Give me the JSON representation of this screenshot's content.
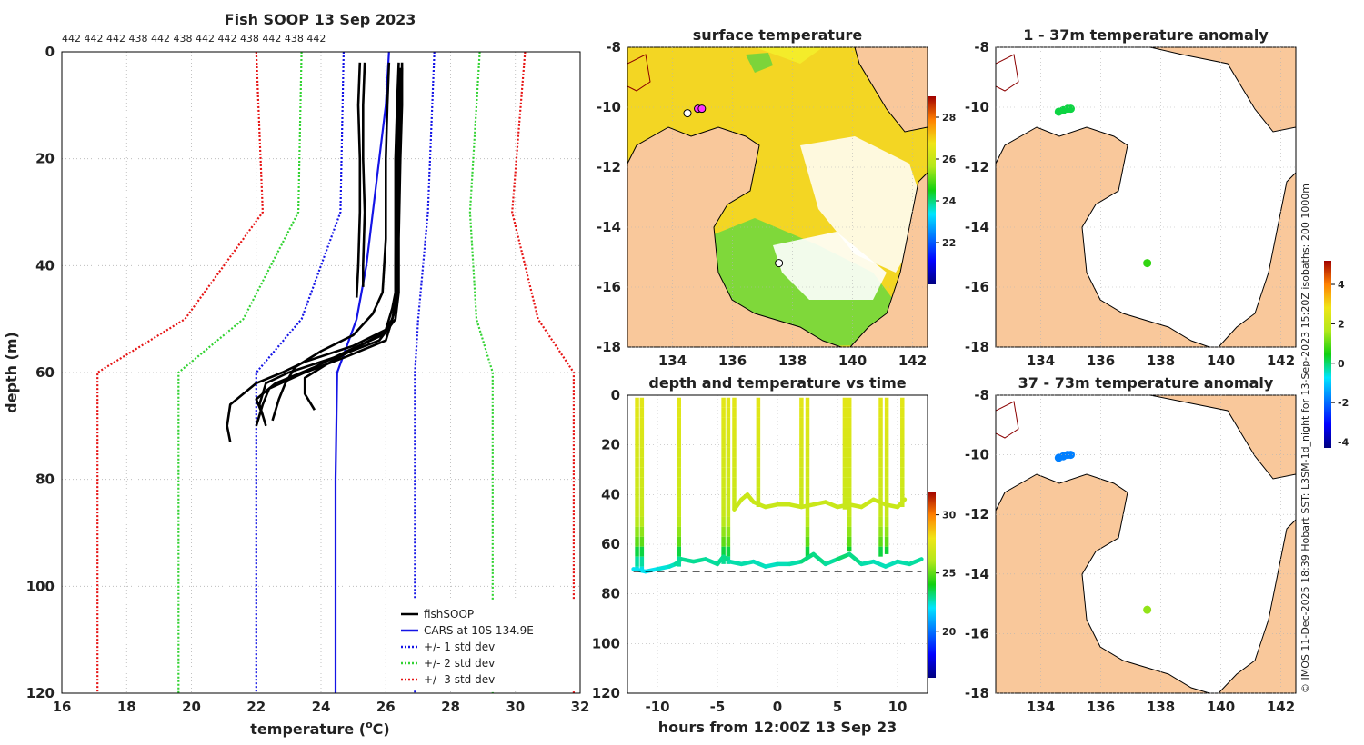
{
  "colors": {
    "land": "#f9c89b",
    "axis": "#000000",
    "grid": "#b4b4b4",
    "profile": "#000000",
    "cars": "#1414e6",
    "std1": "#1414e6",
    "std2": "#32d232",
    "std3": "#e61414"
  },
  "side_caption": "© IMOS 11-Dec-2025 18:39 Hobart SST: L3SM-1d_night for 13-Sep-2023 15:20Z isobaths: 200  1000m",
  "chart_data": [
    {
      "id": "profile",
      "type": "line",
      "title": "Fish SOOP 13 Sep 2023",
      "xlabel": "temperature (°C)",
      "xlabel_main": "temperature (",
      "xlabel_sup": "o",
      "xlabel_end": "C)",
      "ylabel": "depth (m)",
      "xlim": [
        16,
        32
      ],
      "ylim": [
        120,
        0
      ],
      "xticks": [
        "16",
        "18",
        "20",
        "22",
        "24",
        "26",
        "28",
        "30",
        "32"
      ],
      "yticks": [
        "0",
        "20",
        "40",
        "60",
        "80",
        "100",
        "120"
      ],
      "top_ids": "442 442 442 438 442 438 442 442 438 442 438 442",
      "legend": [
        "fishSOOP",
        "CARS at 10S 134.9E",
        "+/- 1 std dev",
        "+/- 2 std dev",
        "+/- 3 std dev"
      ],
      "cars_mean": {
        "depth": [
          0,
          10,
          20,
          30,
          40,
          50,
          60,
          80,
          100,
          120
        ],
        "temp": [
          26.1,
          26.0,
          25.8,
          25.6,
          25.4,
          25.1,
          24.5,
          24.45,
          24.45,
          24.45
        ]
      },
      "std_lines": [
        {
          "name": "+/- 1 std dev",
          "depth": [
            0,
            30,
            50,
            60,
            120
          ],
          "left": [
            24.7,
            24.6,
            23.4,
            22.0,
            22.0
          ],
          "right": [
            27.5,
            27.3,
            27.0,
            26.9,
            26.9
          ]
        },
        {
          "name": "+/- 2 std dev",
          "depth": [
            0,
            30,
            50,
            60,
            120
          ],
          "left": [
            23.4,
            23.3,
            21.6,
            19.6,
            19.6
          ],
          "right": [
            28.9,
            28.6,
            28.8,
            29.3,
            29.3
          ]
        },
        {
          "name": "+/- 3 std dev",
          "depth": [
            0,
            30,
            50,
            60,
            120
          ],
          "left": [
            22.0,
            22.2,
            19.8,
            17.1,
            17.1
          ],
          "right": [
            30.3,
            29.9,
            30.7,
            31.8,
            31.8
          ]
        }
      ],
      "profiles": [
        {
          "depth": [
            2,
            10,
            20,
            30,
            40,
            46
          ],
          "temp": [
            25.2,
            25.15,
            25.2,
            25.2,
            25.15,
            25.1
          ]
        },
        {
          "depth": [
            2,
            10,
            20,
            30,
            40,
            44
          ],
          "temp": [
            25.35,
            25.3,
            25.3,
            25.35,
            25.3,
            25.3
          ]
        },
        {
          "depth": [
            2,
            10,
            20,
            35,
            45,
            48,
            52,
            55,
            58,
            60,
            62,
            66,
            70,
            73
          ],
          "temp": [
            26.4,
            26.35,
            26.3,
            26.3,
            26.3,
            26.2,
            26.0,
            25.0,
            23.5,
            22.8,
            22.0,
            21.2,
            21.1,
            21.2
          ]
        },
        {
          "depth": [
            2,
            10,
            20,
            35,
            45,
            50,
            54,
            57,
            60,
            62,
            66,
            70
          ],
          "temp": [
            26.5,
            26.5,
            26.45,
            26.4,
            26.4,
            26.3,
            25.8,
            24.5,
            23.0,
            22.3,
            22.1,
            22.3
          ]
        },
        {
          "depth": [
            2,
            10,
            20,
            35,
            45,
            49,
            53,
            56,
            59,
            62,
            65,
            69
          ],
          "temp": [
            26.1,
            26.05,
            26.0,
            26.0,
            25.9,
            25.6,
            25.0,
            24.0,
            23.2,
            22.9,
            22.7,
            22.5
          ]
        },
        {
          "depth": [
            3,
            12,
            25,
            40,
            48,
            52,
            55,
            58,
            61,
            64,
            67
          ],
          "temp": [
            26.5,
            26.45,
            26.4,
            26.35,
            26.3,
            26.1,
            25.2,
            24.3,
            23.5,
            23.5,
            23.8
          ]
        },
        {
          "depth": [
            3,
            15,
            30,
            45,
            50,
            53,
            56,
            59,
            62,
            65,
            68
          ],
          "temp": [
            26.45,
            26.4,
            26.4,
            26.35,
            26.2,
            25.9,
            24.8,
            23.8,
            22.6,
            22.0,
            22.2
          ]
        },
        {
          "depth": [
            4,
            20,
            40,
            48,
            54,
            57,
            60,
            63,
            66,
            70
          ],
          "temp": [
            26.4,
            26.35,
            26.3,
            26.3,
            26.0,
            24.8,
            23.5,
            22.4,
            22.2,
            22.0
          ]
        }
      ]
    },
    {
      "id": "sst",
      "type": "heatmap",
      "title": "surface temperature",
      "xlim": [
        132.5,
        142.5
      ],
      "ylim": [
        -18,
        -8
      ],
      "xticks": [
        "134",
        "136",
        "138",
        "140",
        "142"
      ],
      "yticks": [
        "-8",
        "-10",
        "-12",
        "-14",
        "-16",
        "-18"
      ],
      "colorbar": {
        "min": 20,
        "max": 29,
        "ticks": [
          "22",
          "24",
          "26",
          "28"
        ]
      },
      "markers": [
        {
          "lon": 134.5,
          "lat": -10.2,
          "color": "#ffffff"
        },
        {
          "lon": 134.85,
          "lat": -10.05,
          "color": "#ff33ff"
        },
        {
          "lon": 134.98,
          "lat": -10.05,
          "color": "#ff33ff"
        },
        {
          "lon": 137.55,
          "lat": -15.2,
          "color": "#ffffff"
        }
      ]
    },
    {
      "id": "timeseries",
      "type": "scatter",
      "title": "depth and temperature vs time",
      "xlabel": "hours from 12:00Z 13 Sep 23",
      "xlim": [
        -12.5,
        12.5
      ],
      "ylim": [
        120,
        0
      ],
      "xticks": [
        "-10",
        "-5",
        "0",
        "5",
        "10"
      ],
      "yticks": [
        "0",
        "20",
        "40",
        "60",
        "80",
        "100",
        "120"
      ],
      "colorbar": {
        "min": 16,
        "max": 32,
        "ticks": [
          "20",
          "25",
          "30"
        ]
      },
      "dashed_depths": [
        {
          "depth": 47,
          "from": -3.5,
          "to": 10.5
        },
        {
          "depth": 71,
          "from": -12,
          "to": 12
        }
      ],
      "dives": [
        {
          "t": -11.7,
          "max": 70,
          "end": 62
        },
        {
          "t": -11.3,
          "max": 71,
          "end": 62
        },
        {
          "t": -8.2,
          "max": 69,
          "end": 60
        },
        {
          "t": -4.5,
          "max": 68,
          "end": 58
        },
        {
          "t": -4.1,
          "max": 68,
          "end": 60
        },
        {
          "t": -3.6,
          "max": 46,
          "end": 44
        },
        {
          "t": -1.6,
          "max": 45,
          "end": 44
        },
        {
          "t": 2.0,
          "max": 45,
          "end": 65
        },
        {
          "t": 2.5,
          "max": 66,
          "end": 46
        },
        {
          "t": 5.6,
          "max": 46,
          "end": 63
        },
        {
          "t": 6.0,
          "max": 63,
          "end": 45
        },
        {
          "t": 8.6,
          "max": 65,
          "end": 46
        },
        {
          "t": 9.1,
          "max": 64,
          "end": 44
        },
        {
          "t": 10.4,
          "max": 45,
          "end": 42
        }
      ],
      "deep_track": {
        "t": [
          -12,
          -11,
          -10,
          -9,
          -8.5,
          -8,
          -7,
          -6,
          -5,
          -4.5,
          -4,
          -3,
          -2,
          -1,
          0,
          1,
          2,
          3,
          4,
          5,
          6,
          7,
          8,
          9,
          10,
          11,
          12
        ],
        "depth": [
          70,
          71,
          70,
          69,
          68,
          66,
          67,
          66,
          68,
          65,
          67,
          68,
          67,
          69,
          68,
          68,
          67,
          64,
          68,
          66,
          64,
          68,
          67,
          69,
          67,
          68,
          66
        ]
      },
      "shallow_track": {
        "t": [
          -3.6,
          -3,
          -2.5,
          -2,
          -1.5,
          -1,
          0,
          1,
          2,
          3,
          4,
          5,
          6,
          7,
          8,
          9,
          10,
          10.6
        ],
        "depth": [
          46,
          42,
          40,
          43,
          44,
          45,
          44,
          44,
          45,
          44,
          43,
          45,
          44,
          45,
          42,
          44,
          45,
          42
        ]
      }
    },
    {
      "id": "anom_shallow",
      "type": "heatmap",
      "title": "1 - 37m temperature anomaly",
      "xlim": [
        132.5,
        142.5
      ],
      "ylim": [
        -18,
        -8
      ],
      "xticks": [
        "134",
        "136",
        "138",
        "140",
        "142"
      ],
      "yticks": [
        "-8",
        "-10",
        "-12",
        "-14",
        "-16",
        "-18"
      ],
      "points": [
        {
          "lon": 134.6,
          "lat": -10.15,
          "anom": 0.2
        },
        {
          "lon": 134.75,
          "lat": -10.1,
          "anom": 0.2
        },
        {
          "lon": 134.9,
          "lat": -10.05,
          "anom": 0.2
        },
        {
          "lon": 135.0,
          "lat": -10.05,
          "anom": 0.2
        },
        {
          "lon": 137.55,
          "lat": -15.2,
          "anom": 0.7
        }
      ]
    },
    {
      "id": "anom_deep",
      "type": "heatmap",
      "title": "37 - 73m temperature anomaly",
      "xlim": [
        132.5,
        142.5
      ],
      "ylim": [
        -18,
        -8
      ],
      "xticks": [
        "134",
        "136",
        "138",
        "140",
        "142"
      ],
      "yticks": [
        "-8",
        "-10",
        "-12",
        "-14",
        "-16",
        "-18"
      ],
      "colorbar": {
        "min": -4.3,
        "max": 5.2,
        "ticks": [
          "-4",
          "-2",
          "0",
          "2",
          "4"
        ]
      },
      "points": [
        {
          "lon": 134.6,
          "lat": -10.1,
          "anom": -1.8
        },
        {
          "lon": 134.75,
          "lat": -10.05,
          "anom": -1.8
        },
        {
          "lon": 134.9,
          "lat": -10.0,
          "anom": -1.8
        },
        {
          "lon": 135.0,
          "lat": -10.0,
          "anom": -1.8
        },
        {
          "lon": 137.55,
          "lat": -15.2,
          "anom": 1.4
        }
      ]
    }
  ]
}
